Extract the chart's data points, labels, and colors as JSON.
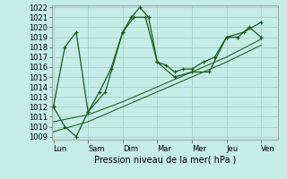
{
  "xlabel": "Pression niveau de la mer( hPa )",
  "x_labels": [
    "Lun",
    "Sam",
    "Dim",
    "Mar",
    "Mer",
    "Jeu",
    "Ven"
  ],
  "ylim_min": 1009,
  "ylim_max": 1022,
  "background_color": "#c5ece6",
  "grid_color": "#9eccc6",
  "line_color": "#1a5c1a",
  "line1_x": [
    0,
    0.33,
    0.66,
    1.0,
    1.33,
    1.66,
    2.0,
    2.25,
    2.5,
    2.75,
    3.0,
    3.25,
    3.5,
    3.75,
    4.0,
    4.33,
    4.66,
    5.0,
    5.33,
    5.66,
    6.0
  ],
  "line1_y": [
    1012.0,
    1018.0,
    1019.5,
    1011.5,
    1013.5,
    1015.8,
    1019.5,
    1021.0,
    1022.0,
    1021.0,
    1016.5,
    1016.2,
    1015.5,
    1015.8,
    1015.8,
    1016.5,
    1017.0,
    1019.0,
    1019.0,
    1020.0,
    1019.0
  ],
  "line2_x": [
    0,
    0.33,
    0.66,
    1.0,
    1.5,
    2.0,
    2.33,
    2.66,
    3.0,
    3.5,
    4.0,
    4.5,
    5.0,
    5.5,
    6.0
  ],
  "line2_y": [
    1012.0,
    1010.0,
    1009.0,
    1011.5,
    1013.5,
    1019.5,
    1021.0,
    1021.0,
    1016.5,
    1015.0,
    1015.5,
    1015.5,
    1019.0,
    1019.5,
    1020.5
  ],
  "trend1_x": [
    0.0,
    1.0,
    2.0,
    3.0,
    4.0,
    5.0,
    6.0
  ],
  "trend1_y": [
    1009.5,
    1010.5,
    1012.0,
    1013.5,
    1015.0,
    1016.5,
    1018.2
  ],
  "trend2_x": [
    0.0,
    1.0,
    2.0,
    3.0,
    4.0,
    5.0,
    6.0
  ],
  "trend2_y": [
    1010.5,
    1011.2,
    1012.5,
    1014.0,
    1015.5,
    1017.0,
    1018.8
  ],
  "xlabel_fontsize": 7,
  "tick_fontsize": 6
}
